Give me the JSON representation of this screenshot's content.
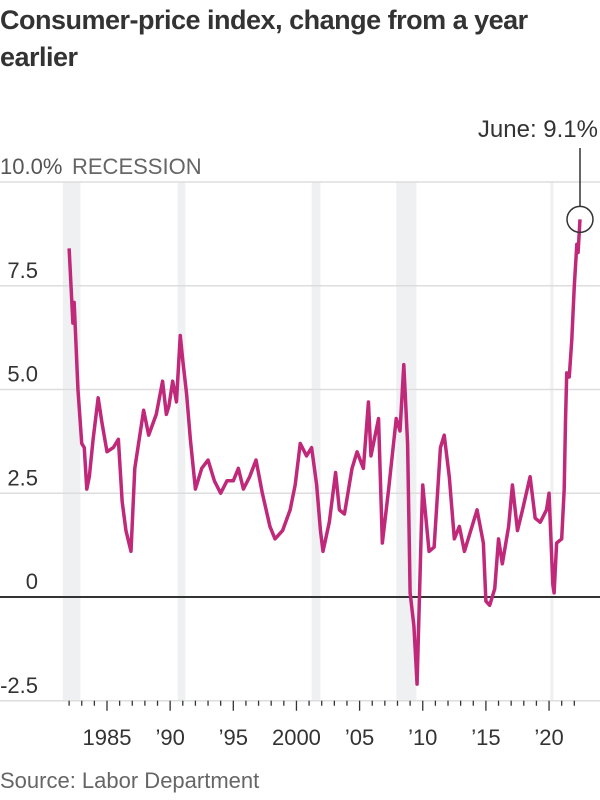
{
  "chart_data": {
    "type": "line",
    "title": "Consumer-price index, change from a year earlier",
    "source": "Source: Labor Department",
    "ylabel": "",
    "y_unit_label": "10.0%",
    "recession_label": "RECESSION",
    "annotation": "June: 9.1%",
    "ylim": [
      -2.5,
      10
    ],
    "xlim": [
      1982,
      2022.5
    ],
    "y_ticks": [
      {
        "value": 10,
        "label": "10.0%"
      },
      {
        "value": 7.5,
        "label": "7.5"
      },
      {
        "value": 5,
        "label": "5.0"
      },
      {
        "value": 2.5,
        "label": "2.5"
      },
      {
        "value": 0,
        "label": "0"
      },
      {
        "value": -2.5,
        "label": "-2.5"
      }
    ],
    "x_ticks": [
      {
        "value": 1985,
        "label": "1985"
      },
      {
        "value": 1990,
        "label": "’90"
      },
      {
        "value": 1995,
        "label": "’95"
      },
      {
        "value": 2000,
        "label": "2000"
      },
      {
        "value": 2005,
        "label": "’05"
      },
      {
        "value": 2010,
        "label": "’10"
      },
      {
        "value": 2015,
        "label": "’15"
      },
      {
        "value": 2020,
        "label": "’20"
      }
    ],
    "recessions": [
      [
        1981.5,
        1982.9
      ],
      [
        1990.6,
        1991.2
      ],
      [
        2001.2,
        2001.9
      ],
      [
        2007.9,
        2009.5
      ],
      [
        2020.1,
        2020.35
      ]
    ],
    "grid": true,
    "line_color": "#c0297a",
    "series": [
      {
        "name": "CPI year-over-year change (%)",
        "x": [
          1982.0,
          1982.3,
          1982.4,
          1982.7,
          1983.0,
          1983.2,
          1983.4,
          1983.6,
          1983.9,
          1984.3,
          1984.6,
          1985.0,
          1985.5,
          1985.9,
          1986.2,
          1986.5,
          1986.9,
          1987.2,
          1987.5,
          1987.9,
          1988.3,
          1988.9,
          1989.4,
          1989.7,
          1989.9,
          1990.2,
          1990.5,
          1990.8,
          1991.0,
          1991.3,
          1991.6,
          1992.0,
          1992.5,
          1993.0,
          1993.5,
          1994.0,
          1994.5,
          1995.0,
          1995.4,
          1995.8,
          1996.3,
          1996.8,
          1997.3,
          1997.9,
          1998.3,
          1998.9,
          1999.5,
          1999.9,
          2000.3,
          2000.8,
          2001.2,
          2001.6,
          2001.9,
          2002.1,
          2002.6,
          2003.1,
          2003.4,
          2003.8,
          2004.4,
          2004.8,
          2005.3,
          2005.7,
          2005.9,
          2006.5,
          2006.8,
          2007.3,
          2007.9,
          2008.2,
          2008.5,
          2008.8,
          2009.0,
          2009.3,
          2009.55,
          2009.9,
          2010.0,
          2010.5,
          2010.9,
          2011.4,
          2011.7,
          2012.1,
          2012.5,
          2012.9,
          2013.3,
          2013.7,
          2014.3,
          2014.8,
          2015.0,
          2015.3,
          2015.7,
          2016.0,
          2016.3,
          2016.8,
          2017.1,
          2017.5,
          2017.9,
          2018.5,
          2018.9,
          2019.3,
          2019.8,
          2020.0,
          2020.3,
          2020.4,
          2020.6,
          2021.0,
          2021.2,
          2021.3,
          2021.4,
          2021.6,
          2021.8,
          2022.0,
          2022.2,
          2022.3,
          2022.45
        ],
        "values": [
          8.4,
          6.6,
          7.1,
          5.0,
          3.7,
          3.6,
          2.6,
          2.9,
          3.8,
          4.8,
          4.2,
          3.5,
          3.6,
          3.8,
          2.3,
          1.6,
          1.1,
          3.1,
          3.7,
          4.5,
          3.9,
          4.4,
          5.2,
          4.4,
          4.6,
          5.2,
          4.7,
          6.3,
          5.7,
          4.9,
          3.8,
          2.6,
          3.1,
          3.3,
          2.8,
          2.5,
          2.8,
          2.8,
          3.1,
          2.6,
          2.9,
          3.3,
          2.5,
          1.7,
          1.4,
          1.6,
          2.1,
          2.7,
          3.7,
          3.4,
          3.6,
          2.7,
          1.6,
          1.1,
          1.8,
          3.0,
          2.1,
          2.0,
          3.1,
          3.5,
          3.1,
          4.7,
          3.4,
          4.3,
          1.3,
          2.6,
          4.3,
          4.0,
          5.6,
          3.7,
          0.1,
          -0.7,
          -2.1,
          1.8,
          2.7,
          1.1,
          1.2,
          3.6,
          3.9,
          2.9,
          1.4,
          1.7,
          1.1,
          1.5,
          2.1,
          1.3,
          -0.1,
          -0.2,
          0.2,
          1.4,
          0.8,
          1.7,
          2.7,
          1.6,
          2.1,
          2.9,
          1.9,
          1.8,
          2.1,
          2.5,
          0.3,
          0.1,
          1.3,
          1.4,
          2.6,
          4.2,
          5.4,
          5.3,
          6.2,
          7.5,
          8.5,
          8.3,
          9.1
        ]
      }
    ]
  }
}
